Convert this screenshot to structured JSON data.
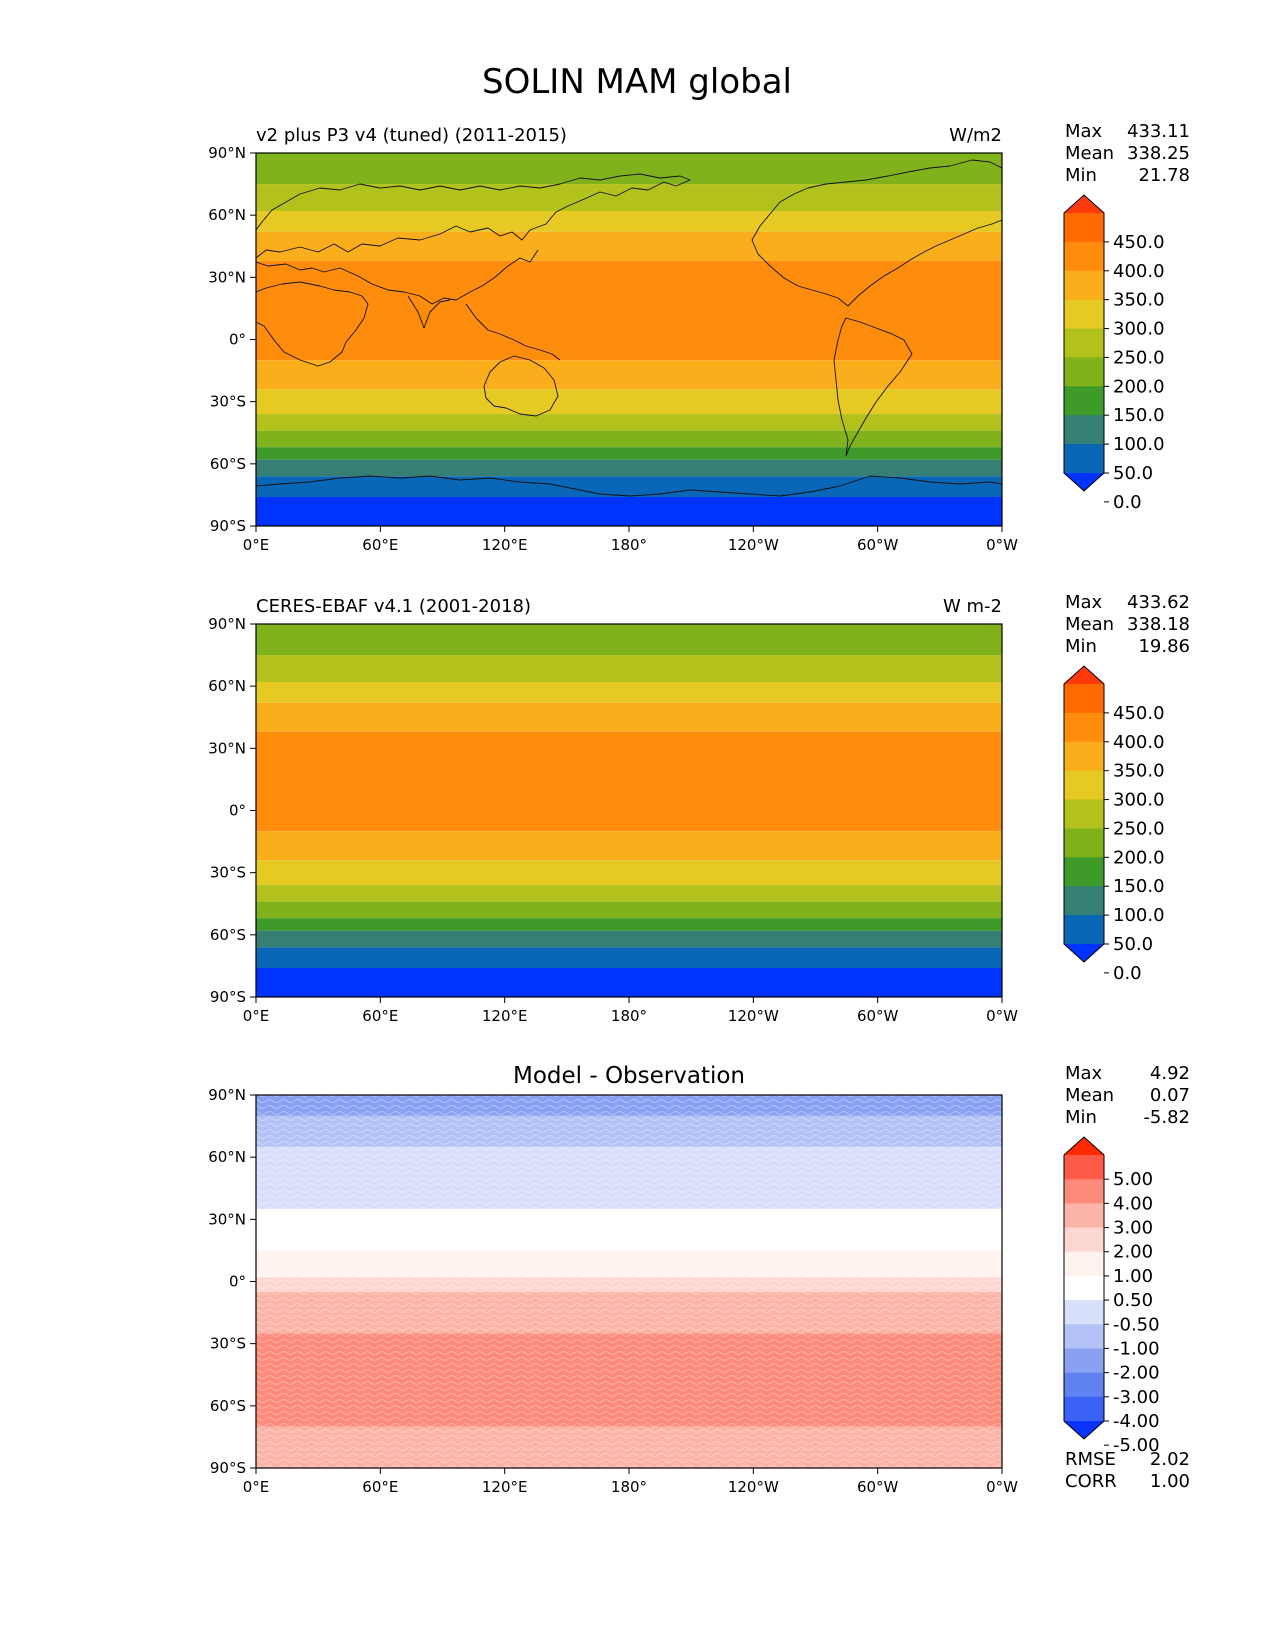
{
  "figure": {
    "title": "SOLIN MAM global"
  },
  "chart_data": [
    {
      "type": "heatmap",
      "title": "v2 plus P3 v4 (tuned) (2011-2015)",
      "units": "W/m2",
      "stats": [
        {
          "label": "Max",
          "value": "433.11"
        },
        {
          "label": "Mean",
          "value": "338.25"
        },
        {
          "label": "Min",
          "value": "21.78"
        }
      ],
      "x_ticks": [
        "0°E",
        "60°E",
        "120°E",
        "180°",
        "120°W",
        "60°W",
        "0°W"
      ],
      "y_ticks": [
        "90°N",
        "60°N",
        "30°N",
        "0°",
        "30°S",
        "60°S",
        "90°S"
      ],
      "colorbar_labels": [
        "450.0",
        "400.0",
        "350.0",
        "300.0",
        "250.0",
        "200.0",
        "150.0",
        "100.0",
        "50.0",
        "0.0"
      ],
      "colorbar_colors": [
        "#fe3a0c",
        "#ff6a00",
        "#fe8c0d",
        "#fbae1c",
        "#e6c922",
        "#b2c11b",
        "#7fb21b",
        "#3e9a29",
        "#367f75",
        "#0a66b6",
        "#0033ff"
      ],
      "latitude_bands": [
        {
          "lat_range": [
            75,
            90
          ],
          "level": "200.0-250.0"
        },
        {
          "lat_range": [
            62,
            75
          ],
          "level": "250.0-300.0"
        },
        {
          "lat_range": [
            52,
            62
          ],
          "level": "300.0-350.0"
        },
        {
          "lat_range": [
            38,
            52
          ],
          "level": "350.0-400.0"
        },
        {
          "lat_range": [
            -10,
            38
          ],
          "level": "400.0-450.0"
        },
        {
          "lat_range": [
            -24,
            -10
          ],
          "level": "350.0-400.0"
        },
        {
          "lat_range": [
            -36,
            -24
          ],
          "level": "300.0-350.0"
        },
        {
          "lat_range": [
            -44,
            -36
          ],
          "level": "250.0-300.0"
        },
        {
          "lat_range": [
            -52,
            -44
          ],
          "level": "200.0-250.0"
        },
        {
          "lat_range": [
            -58,
            -52
          ],
          "level": "150.0-200.0"
        },
        {
          "lat_range": [
            -66,
            -58
          ],
          "level": "100.0-150.0"
        },
        {
          "lat_range": [
            -76,
            -66
          ],
          "level": "50.0-100.0"
        },
        {
          "lat_range": [
            -90,
            -76
          ],
          "level": "0.0-50.0"
        }
      ]
    },
    {
      "type": "heatmap",
      "title": "CERES-EBAF v4.1 (2001-2018)",
      "units": "W m-2",
      "stats": [
        {
          "label": "Max",
          "value": "433.62"
        },
        {
          "label": "Mean",
          "value": "338.18"
        },
        {
          "label": "Min",
          "value": "19.86"
        }
      ],
      "x_ticks": [
        "0°E",
        "60°E",
        "120°E",
        "180°",
        "120°W",
        "60°W",
        "0°W"
      ],
      "y_ticks": [
        "90°N",
        "60°N",
        "30°N",
        "0°",
        "30°S",
        "60°S",
        "90°S"
      ],
      "colorbar_labels": [
        "450.0",
        "400.0",
        "350.0",
        "300.0",
        "250.0",
        "200.0",
        "150.0",
        "100.0",
        "50.0",
        "0.0"
      ],
      "colorbar_colors": [
        "#fe3a0c",
        "#ff6a00",
        "#fe8c0d",
        "#fbae1c",
        "#e6c922",
        "#b2c11b",
        "#7fb21b",
        "#3e9a29",
        "#367f75",
        "#0a66b6",
        "#0033ff"
      ],
      "latitude_bands": [
        {
          "lat_range": [
            75,
            90
          ],
          "level": "200.0-250.0"
        },
        {
          "lat_range": [
            62,
            75
          ],
          "level": "250.0-300.0"
        },
        {
          "lat_range": [
            52,
            62
          ],
          "level": "300.0-350.0"
        },
        {
          "lat_range": [
            38,
            52
          ],
          "level": "350.0-400.0"
        },
        {
          "lat_range": [
            -10,
            38
          ],
          "level": "400.0-450.0"
        },
        {
          "lat_range": [
            -24,
            -10
          ],
          "level": "350.0-400.0"
        },
        {
          "lat_range": [
            -36,
            -24
          ],
          "level": "300.0-350.0"
        },
        {
          "lat_range": [
            -44,
            -36
          ],
          "level": "250.0-300.0"
        },
        {
          "lat_range": [
            -52,
            -44
          ],
          "level": "200.0-250.0"
        },
        {
          "lat_range": [
            -58,
            -52
          ],
          "level": "150.0-200.0"
        },
        {
          "lat_range": [
            -66,
            -58
          ],
          "level": "100.0-150.0"
        },
        {
          "lat_range": [
            -76,
            -66
          ],
          "level": "50.0-100.0"
        },
        {
          "lat_range": [
            -90,
            -76
          ],
          "level": "0.0-50.0"
        }
      ]
    },
    {
      "type": "heatmap",
      "title": "Model - Observation",
      "units": "",
      "stats": [
        {
          "label": "Max",
          "value": "4.92"
        },
        {
          "label": "Mean",
          "value": "0.07"
        },
        {
          "label": "Min",
          "value": "-5.82"
        }
      ],
      "extra_stats": [
        {
          "label": "RMSE",
          "value": "2.02"
        },
        {
          "label": "CORR",
          "value": "1.00"
        }
      ],
      "x_ticks": [
        "0°E",
        "60°E",
        "120°E",
        "180°",
        "120°W",
        "60°W",
        "0°W"
      ],
      "y_ticks": [
        "90°N",
        "60°N",
        "30°N",
        "0°",
        "30°S",
        "60°S",
        "90°S"
      ],
      "colorbar_labels": [
        "5.00",
        "4.00",
        "3.00",
        "2.00",
        "1.00",
        "0.50",
        "-0.50",
        "-1.00",
        "-2.00",
        "-3.00",
        "-4.00",
        "-5.00"
      ],
      "colorbar_colors": [
        "#ff2a00",
        "#fe5a48",
        "#fd8a7a",
        "#fdb4a8",
        "#fdd8d2",
        "#fff2ef",
        "#ffffff",
        "#d8dffa",
        "#b2c2f6",
        "#8aa1f2",
        "#6183f2",
        "#3a62f5",
        "#0a33ff"
      ],
      "latitude_bands": [
        {
          "lat_range": [
            80,
            90
          ],
          "level": "-4.00 to -3.00"
        },
        {
          "lat_range": [
            65,
            80
          ],
          "level": "-3.00 to -2.00"
        },
        {
          "lat_range": [
            35,
            65
          ],
          "level": "-2.00 to -1.00"
        },
        {
          "lat_range": [
            15,
            35
          ],
          "level": "-1.00 to -0.50"
        },
        {
          "lat_range": [
            2,
            15
          ],
          "level": "-0.50 to 0.50"
        },
        {
          "lat_range": [
            -5,
            2
          ],
          "level": "0.50 to 1.00"
        },
        {
          "lat_range": [
            -25,
            -5
          ],
          "level": "1.00 to 2.00"
        },
        {
          "lat_range": [
            -70,
            -25
          ],
          "level": "2.00 to 3.00"
        },
        {
          "lat_range": [
            -90,
            -70
          ],
          "level": "1.00 to 2.00"
        }
      ]
    }
  ]
}
